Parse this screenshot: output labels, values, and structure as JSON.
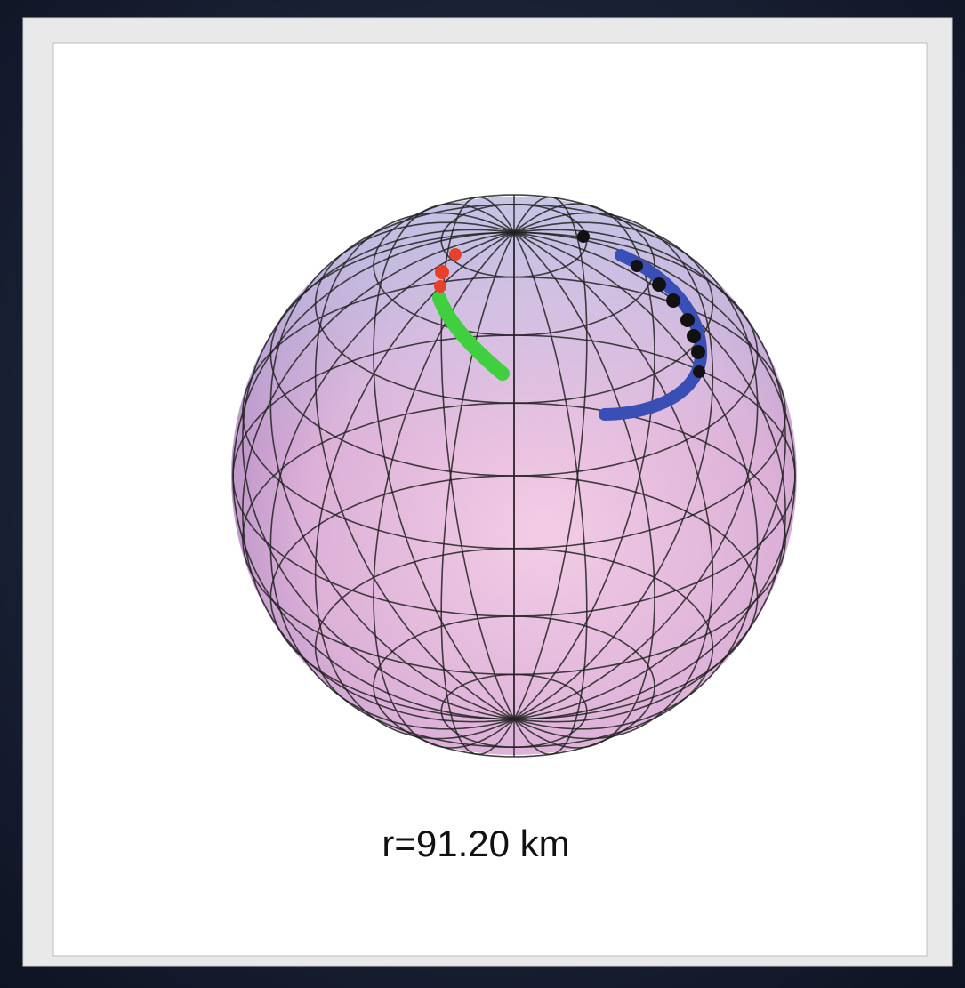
{
  "caption": "r=91.20 km"
}
